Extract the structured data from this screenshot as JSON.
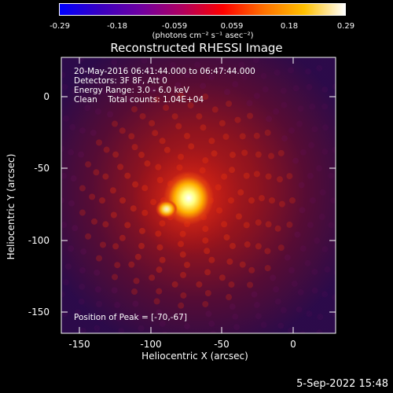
{
  "colorbar": {
    "ticks": [
      "-0.29",
      "-0.18",
      "-0.059",
      "0.059",
      "0.18",
      "0.29"
    ],
    "units": "(photons cm⁻² s⁻¹ asec⁻²)",
    "colors": [
      "#0000ff",
      "#3a00c0",
      "#7000a0",
      "#b00060",
      "#ff0000",
      "#ff7000",
      "#ffc000",
      "#ffffff"
    ]
  },
  "title": "Reconstructed RHESSI Image",
  "annotations": {
    "time": "20-May-2016 06:41:44.000 to 06:47:44.000",
    "detectors": "Detectors: 3F 8F, Att 0",
    "energy": "Energy Range: 3.0 - 6.0 keV",
    "clean": "Clean    Total counts: 1.04E+04",
    "peak": "Position of Peak = [-70,-67]"
  },
  "axes": {
    "xlabel": "Heliocentric X (arcsec)",
    "ylabel": "Heliocentric Y (arcsec)",
    "xticks": [
      "-150",
      "-100",
      "-50",
      "0"
    ],
    "yticks": [
      "0",
      "-50",
      "-100",
      "-150"
    ]
  },
  "footer": {
    "date": "5-Sep-2022 15:48"
  }
}
